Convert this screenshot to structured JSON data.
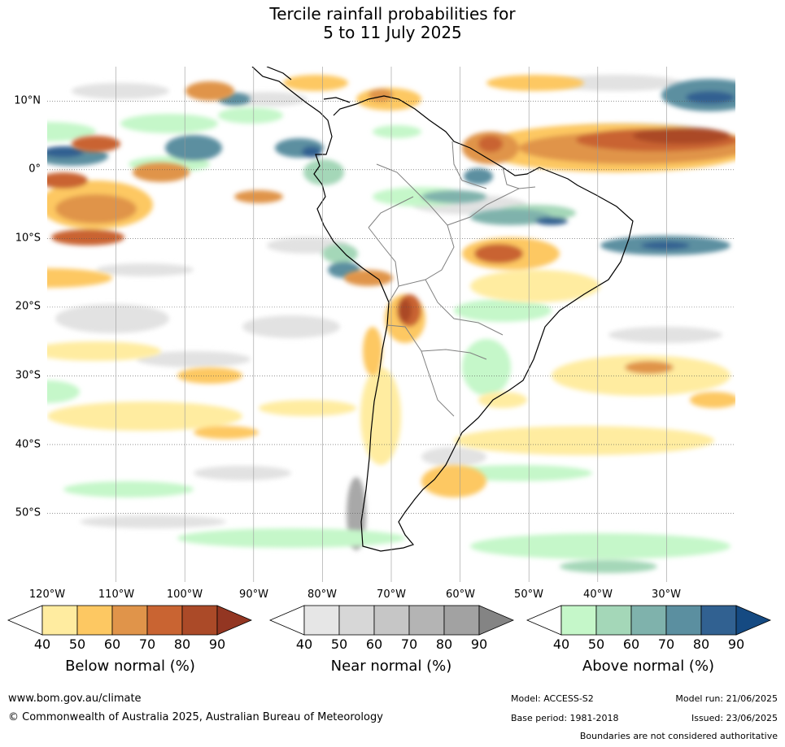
{
  "title": {
    "line1": "Tercile rainfall probabilities for",
    "line2": "5 to 11 July 2025"
  },
  "map": {
    "lat_labels": [
      "10°N",
      "0°",
      "10°S",
      "20°S",
      "30°S",
      "40°S",
      "50°S"
    ],
    "lat_values": [
      10,
      0,
      -10,
      -20,
      -30,
      -40,
      -50
    ],
    "lon_labels": [
      "120°W",
      "110°W",
      "100°W",
      "90°W",
      "80°W",
      "70°W",
      "60°W",
      "50°W",
      "40°W",
      "30°W"
    ],
    "lon_values": [
      -120,
      -110,
      -100,
      -90,
      -80,
      -70,
      -60,
      -50,
      -40,
      -30
    ],
    "extent": {
      "lon_min": -120,
      "lon_max": -20,
      "lat_min": -60,
      "lat_max": 15
    }
  },
  "colorbars": [
    {
      "label": "Below normal (%)",
      "ticks": [
        "40",
        "50",
        "60",
        "70",
        "80",
        "90"
      ],
      "colors": [
        "#ffffff",
        "#ffeca0",
        "#fdc862",
        "#e0944a",
        "#c96432",
        "#ab4a28",
        "#933622"
      ]
    },
    {
      "label": "Near normal (%)",
      "ticks": [
        "40",
        "50",
        "60",
        "70",
        "80",
        "90"
      ],
      "colors": [
        "#ffffff",
        "#e6e6e6",
        "#d7d7d7",
        "#c6c6c6",
        "#b4b4b4",
        "#a2a2a2",
        "#848484"
      ]
    },
    {
      "label": "Above normal (%)",
      "ticks": [
        "40",
        "50",
        "60",
        "70",
        "80",
        "90"
      ],
      "colors": [
        "#ffffff",
        "#c5f7c9",
        "#a4d7b8",
        "#7fb2ac",
        "#5b8fa0",
        "#316191",
        "#154a82"
      ]
    }
  ],
  "footer": {
    "website": "www.bom.gov.au/climate",
    "copyright": "© Commonwealth of Australia 2025, Australian Bureau of Meteorology",
    "model": "Model: ACCESS-S2",
    "base_period": "Base period: 1981-2018",
    "model_run": "Model run: 21/06/2025",
    "issued": "Issued: 23/06/2025",
    "boundaries_note": "Boundaries are not considered authoritative"
  }
}
